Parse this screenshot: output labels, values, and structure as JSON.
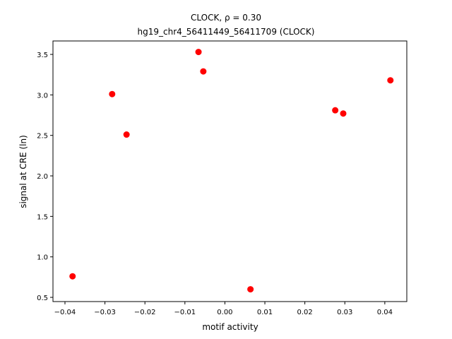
{
  "chart_data": {
    "type": "scatter",
    "title": "CLOCK, ρ = 0.30",
    "subtitle": "hg19_chr4_56411449_56411709 (CLOCK)",
    "x_label": "motif activity",
    "y_label": "signal at CRE (ln)",
    "color": "#ff0000",
    "x": [
      -0.0381,
      -0.0282,
      -0.0246,
      -0.0066,
      -0.0054,
      0.0064,
      0.0276,
      0.0296,
      0.0414
    ],
    "values": [
      0.76,
      3.01,
      2.51,
      3.53,
      3.29,
      0.6,
      2.81,
      2.77,
      3.18
    ],
    "xlim": [
      -0.043,
      0.0455
    ],
    "ylim": [
      0.448,
      3.666
    ],
    "xticks": [
      {
        "value": -0.04,
        "label": "−0.04"
      },
      {
        "value": -0.03,
        "label": "−0.03"
      },
      {
        "value": -0.02,
        "label": "−0.02"
      },
      {
        "value": -0.01,
        "label": "−0.01"
      },
      {
        "value": 0,
        "label": "0.00"
      },
      0.01,
      0.02,
      0.03,
      0.04
    ],
    "yticks": [
      0.5,
      {
        "value": 1,
        "label": "1.0"
      },
      1.5,
      {
        "value": 2,
        "label": "2.0"
      },
      2.5,
      {
        "value": 3,
        "label": "3.0"
      },
      3.5
    ]
  }
}
